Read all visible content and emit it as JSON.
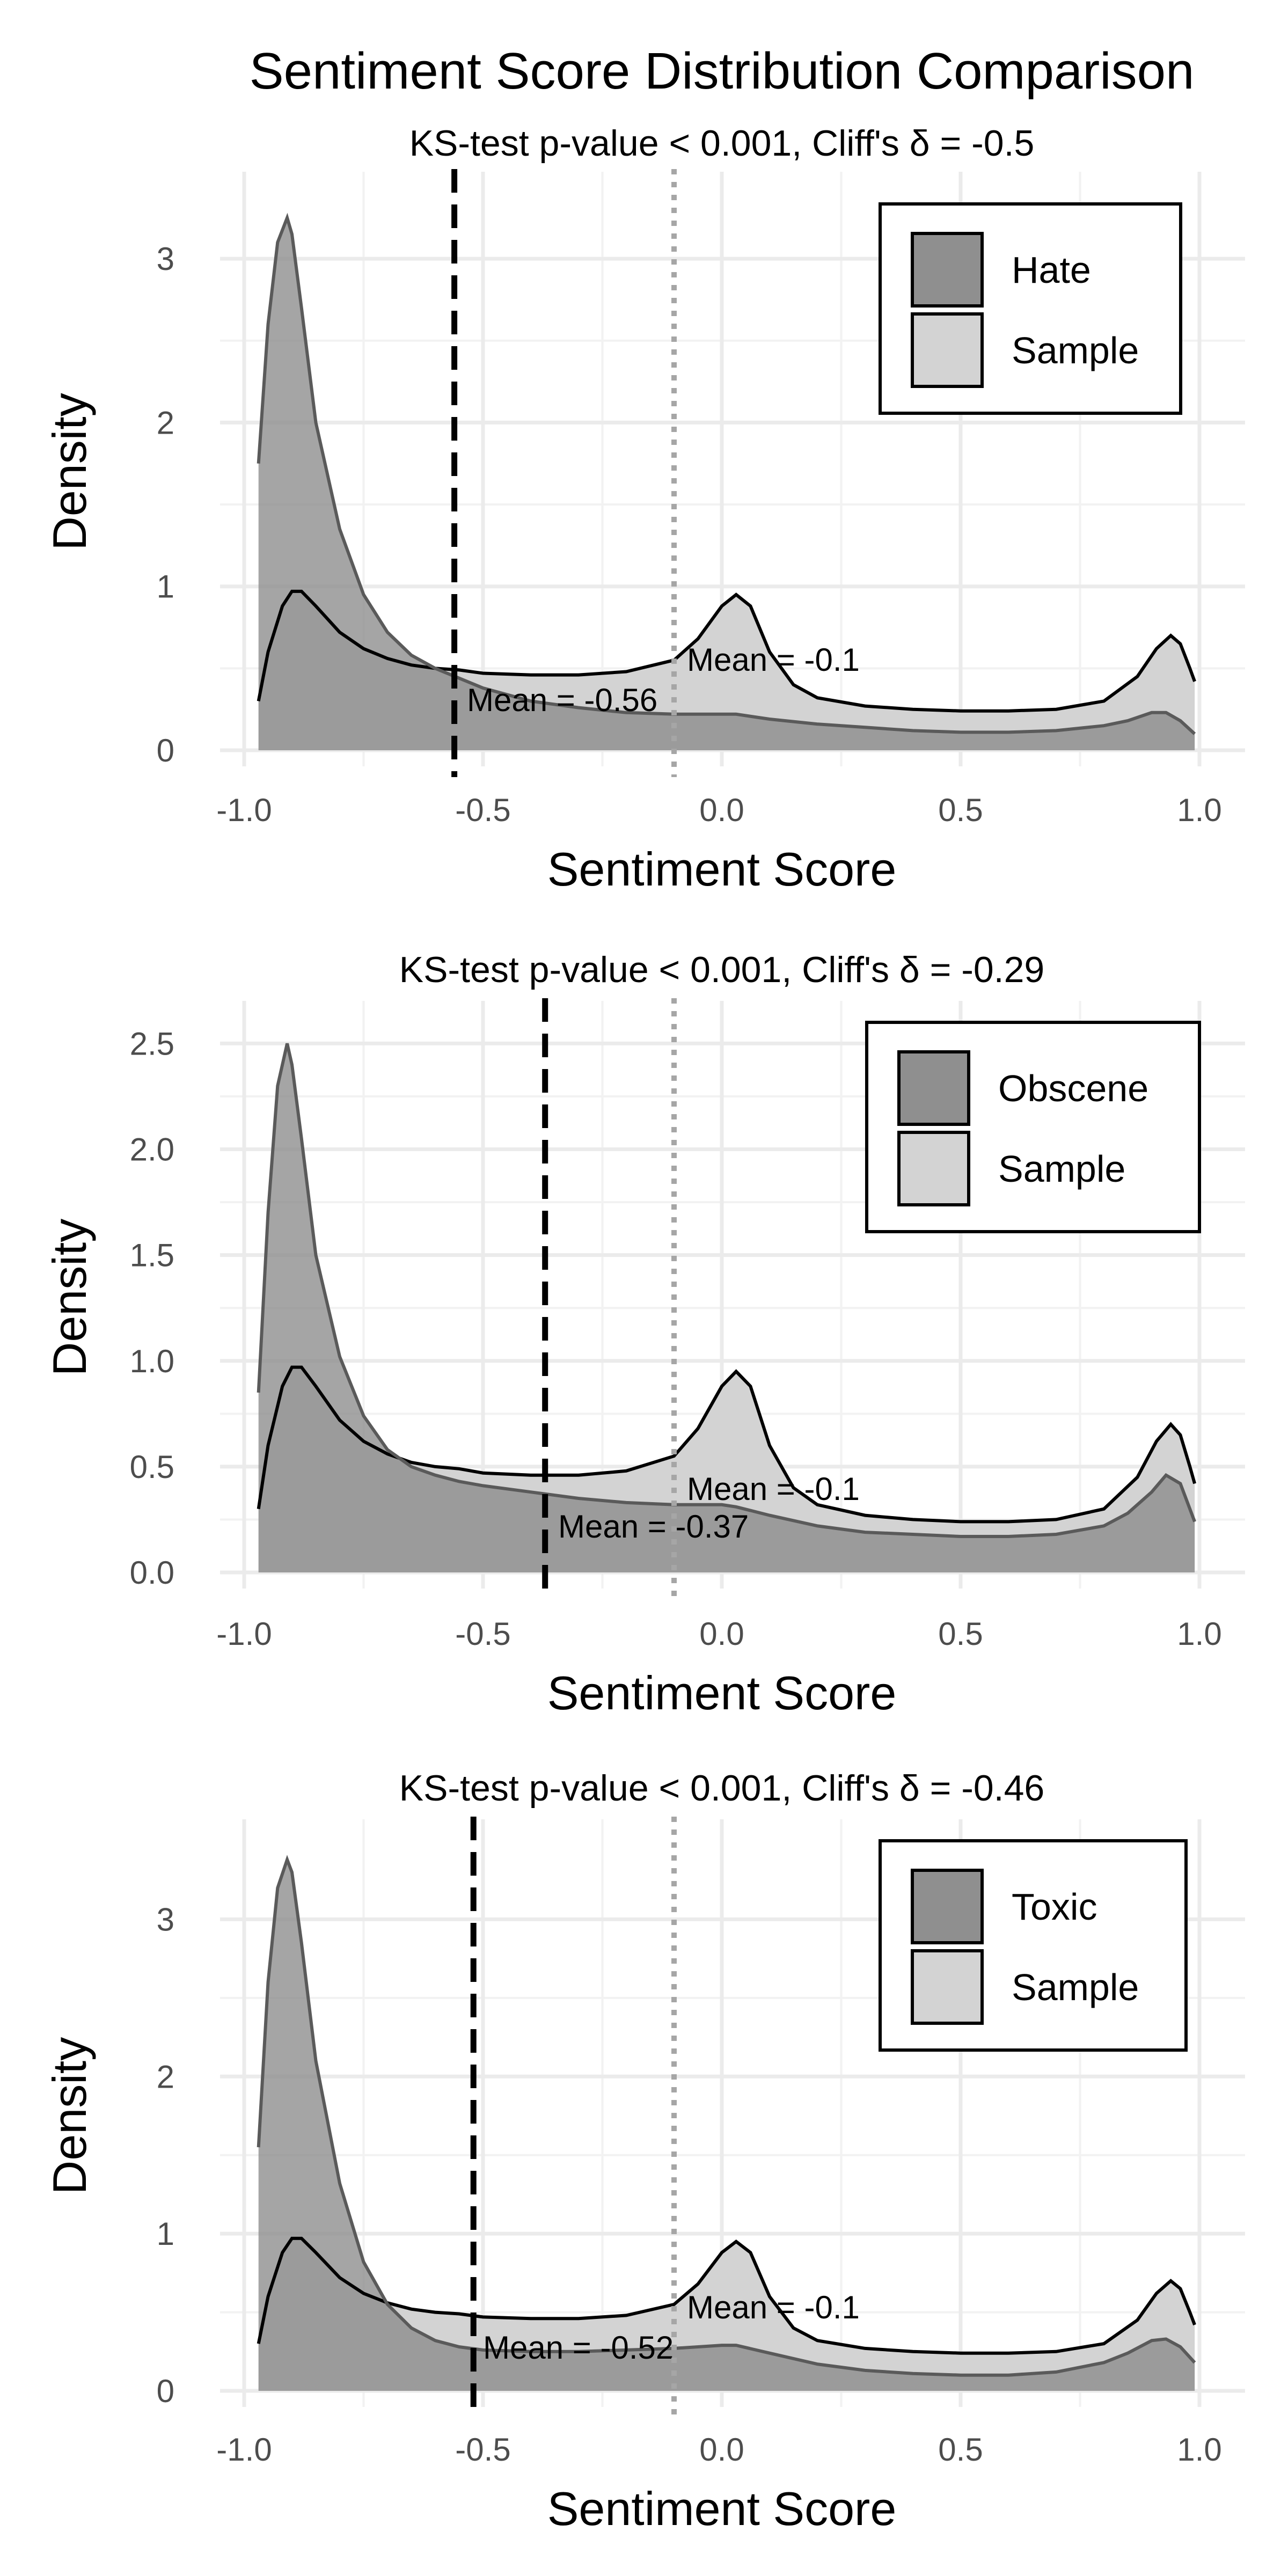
{
  "chart_data": {
    "title": "Sentiment Score Distribution Comparison",
    "panels": [
      {
        "type": "area",
        "subtitle": "KS-test p-value < 0.001, Cliff's δ = -0.5",
        "xlabel": "Sentiment Score",
        "ylabel": "Density",
        "xlim": [
          -1.0,
          1.0
        ],
        "ylim": [
          0,
          3.4
        ],
        "x_ticks": [
          -1.0,
          -0.5,
          0.0,
          0.5,
          1.0
        ],
        "x_tick_labels": [
          "-1.0",
          "-0.5",
          "0.0",
          "0.5",
          "1.0"
        ],
        "y_ticks": [
          0,
          1,
          2,
          3
        ],
        "y_tick_labels": [
          "0",
          "1",
          "2",
          "3"
        ],
        "legend": {
          "position": "top-right",
          "entries": [
            "Hate",
            "Sample"
          ]
        },
        "series": [
          {
            "name": "Hate",
            "color": "#8c8c8c",
            "x": [
              -0.97,
              -0.95,
              -0.93,
              -0.91,
              -0.9,
              -0.88,
              -0.85,
              -0.8,
              -0.75,
              -0.7,
              -0.65,
              -0.6,
              -0.55,
              -0.5,
              -0.4,
              -0.3,
              -0.2,
              -0.1,
              0.0,
              0.03,
              0.1,
              0.2,
              0.3,
              0.4,
              0.5,
              0.6,
              0.7,
              0.8,
              0.85,
              0.9,
              0.93,
              0.96,
              0.99
            ],
            "y": [
              1.75,
              2.6,
              3.1,
              3.25,
              3.15,
              2.7,
              2.0,
              1.35,
              0.95,
              0.72,
              0.58,
              0.5,
              0.44,
              0.38,
              0.3,
              0.26,
              0.23,
              0.22,
              0.22,
              0.22,
              0.19,
              0.16,
              0.14,
              0.12,
              0.11,
              0.11,
              0.12,
              0.15,
              0.18,
              0.23,
              0.23,
              0.18,
              0.1
            ]
          },
          {
            "name": "Sample",
            "color": "#d3d3d3",
            "x": [
              -0.97,
              -0.95,
              -0.92,
              -0.9,
              -0.88,
              -0.85,
              -0.8,
              -0.75,
              -0.7,
              -0.65,
              -0.6,
              -0.55,
              -0.5,
              -0.4,
              -0.3,
              -0.2,
              -0.1,
              -0.05,
              0.0,
              0.03,
              0.06,
              0.1,
              0.15,
              0.2,
              0.3,
              0.4,
              0.5,
              0.6,
              0.7,
              0.8,
              0.87,
              0.91,
              0.94,
              0.96,
              0.98,
              0.99
            ],
            "y": [
              0.3,
              0.6,
              0.88,
              0.97,
              0.97,
              0.88,
              0.72,
              0.62,
              0.56,
              0.52,
              0.5,
              0.49,
              0.47,
              0.46,
              0.46,
              0.48,
              0.55,
              0.68,
              0.88,
              0.95,
              0.88,
              0.6,
              0.4,
              0.32,
              0.27,
              0.25,
              0.24,
              0.24,
              0.25,
              0.3,
              0.45,
              0.62,
              0.7,
              0.65,
              0.5,
              0.42
            ]
          }
        ],
        "reference_lines": [
          {
            "label": "Mean = -0.56",
            "x": -0.56,
            "style": "dashed",
            "color": "#000000"
          },
          {
            "label": "Mean = -0.1",
            "x": -0.1,
            "style": "dotted",
            "color": "#a6a6a6"
          }
        ]
      },
      {
        "type": "area",
        "subtitle": "KS-test p-value < 0.001, Cliff's δ = -0.29",
        "xlabel": "Sentiment Score",
        "ylabel": "Density",
        "xlim": [
          -1.0,
          1.0
        ],
        "ylim": [
          0,
          2.6
        ],
        "x_ticks": [
          -1.0,
          -0.5,
          0.0,
          0.5,
          1.0
        ],
        "x_tick_labels": [
          "-1.0",
          "-0.5",
          "0.0",
          "0.5",
          "1.0"
        ],
        "y_ticks": [
          0,
          0.5,
          1.0,
          1.5,
          2.0,
          2.5
        ],
        "y_tick_labels": [
          "0.0",
          "0.5",
          "1.0",
          "1.5",
          "2.0",
          "2.5"
        ],
        "legend": {
          "position": "top-right",
          "entries": [
            "Obscene",
            "Sample"
          ]
        },
        "series": [
          {
            "name": "Obscene",
            "color": "#8c8c8c",
            "x": [
              -0.97,
              -0.95,
              -0.93,
              -0.91,
              -0.9,
              -0.88,
              -0.85,
              -0.8,
              -0.75,
              -0.7,
              -0.65,
              -0.6,
              -0.55,
              -0.5,
              -0.4,
              -0.3,
              -0.2,
              -0.1,
              0.0,
              0.03,
              0.1,
              0.2,
              0.3,
              0.4,
              0.5,
              0.6,
              0.7,
              0.8,
              0.85,
              0.9,
              0.93,
              0.96,
              0.99
            ],
            "y": [
              0.85,
              1.7,
              2.3,
              2.5,
              2.4,
              2.05,
              1.5,
              1.02,
              0.74,
              0.58,
              0.5,
              0.46,
              0.43,
              0.41,
              0.38,
              0.35,
              0.33,
              0.32,
              0.32,
              0.31,
              0.27,
              0.22,
              0.19,
              0.18,
              0.17,
              0.17,
              0.18,
              0.22,
              0.28,
              0.38,
              0.46,
              0.42,
              0.24
            ]
          },
          {
            "name": "Sample",
            "color": "#d3d3d3",
            "x": [
              -0.97,
              -0.95,
              -0.92,
              -0.9,
              -0.88,
              -0.85,
              -0.8,
              -0.75,
              -0.7,
              -0.65,
              -0.6,
              -0.55,
              -0.5,
              -0.4,
              -0.3,
              -0.2,
              -0.1,
              -0.05,
              0.0,
              0.03,
              0.06,
              0.1,
              0.15,
              0.2,
              0.3,
              0.4,
              0.5,
              0.6,
              0.7,
              0.8,
              0.87,
              0.91,
              0.94,
              0.96,
              0.98,
              0.99
            ],
            "y": [
              0.3,
              0.6,
              0.88,
              0.97,
              0.97,
              0.88,
              0.72,
              0.62,
              0.56,
              0.52,
              0.5,
              0.49,
              0.47,
              0.46,
              0.46,
              0.48,
              0.55,
              0.68,
              0.88,
              0.95,
              0.88,
              0.6,
              0.4,
              0.32,
              0.27,
              0.25,
              0.24,
              0.24,
              0.25,
              0.3,
              0.45,
              0.62,
              0.7,
              0.65,
              0.5,
              0.42
            ]
          }
        ],
        "reference_lines": [
          {
            "label": "Mean = -0.37",
            "x": -0.37,
            "style": "dashed",
            "color": "#000000"
          },
          {
            "label": "Mean = -0.1",
            "x": -0.1,
            "style": "dotted",
            "color": "#a6a6a6"
          }
        ]
      },
      {
        "type": "area",
        "subtitle": "KS-test p-value < 0.001, Cliff's δ = -0.46",
        "xlabel": "Sentiment Score",
        "ylabel": "Density",
        "xlim": [
          -1.0,
          1.0
        ],
        "ylim": [
          0,
          3.5
        ],
        "x_ticks": [
          -1.0,
          -0.5,
          0.0,
          0.5,
          1.0
        ],
        "x_tick_labels": [
          "-1.0",
          "-0.5",
          "0.0",
          "0.5",
          "1.0"
        ],
        "y_ticks": [
          0,
          1,
          2,
          3
        ],
        "y_tick_labels": [
          "0",
          "1",
          "2",
          "3"
        ],
        "legend": {
          "position": "top-right",
          "entries": [
            "Toxic",
            "Sample"
          ]
        },
        "series": [
          {
            "name": "Toxic",
            "color": "#8c8c8c",
            "x": [
              -0.97,
              -0.95,
              -0.93,
              -0.91,
              -0.9,
              -0.88,
              -0.85,
              -0.8,
              -0.75,
              -0.7,
              -0.65,
              -0.6,
              -0.55,
              -0.5,
              -0.4,
              -0.3,
              -0.2,
              -0.1,
              0.0,
              0.03,
              0.1,
              0.2,
              0.3,
              0.4,
              0.5,
              0.6,
              0.7,
              0.8,
              0.85,
              0.9,
              0.93,
              0.96,
              0.99
            ],
            "y": [
              1.55,
              2.6,
              3.2,
              3.38,
              3.3,
              2.85,
              2.1,
              1.32,
              0.82,
              0.55,
              0.4,
              0.32,
              0.28,
              0.26,
              0.25,
              0.25,
              0.26,
              0.27,
              0.29,
              0.29,
              0.24,
              0.17,
              0.13,
              0.11,
              0.1,
              0.1,
              0.12,
              0.18,
              0.24,
              0.32,
              0.33,
              0.28,
              0.18
            ]
          },
          {
            "name": "Sample",
            "color": "#d3d3d3",
            "x": [
              -0.97,
              -0.95,
              -0.92,
              -0.9,
              -0.88,
              -0.85,
              -0.8,
              -0.75,
              -0.7,
              -0.65,
              -0.6,
              -0.55,
              -0.5,
              -0.4,
              -0.3,
              -0.2,
              -0.1,
              -0.05,
              0.0,
              0.03,
              0.06,
              0.1,
              0.15,
              0.2,
              0.3,
              0.4,
              0.5,
              0.6,
              0.7,
              0.8,
              0.87,
              0.91,
              0.94,
              0.96,
              0.98,
              0.99
            ],
            "y": [
              0.3,
              0.6,
              0.88,
              0.97,
              0.97,
              0.88,
              0.72,
              0.62,
              0.56,
              0.52,
              0.5,
              0.49,
              0.47,
              0.46,
              0.46,
              0.48,
              0.55,
              0.68,
              0.88,
              0.95,
              0.88,
              0.6,
              0.4,
              0.32,
              0.27,
              0.25,
              0.24,
              0.24,
              0.25,
              0.3,
              0.45,
              0.62,
              0.7,
              0.65,
              0.5,
              0.42
            ]
          }
        ],
        "reference_lines": [
          {
            "label": "Mean = -0.52",
            "x": -0.52,
            "style": "dashed",
            "color": "#000000"
          },
          {
            "label": "Mean = -0.1",
            "x": -0.1,
            "style": "dotted",
            "color": "#a6a6a6"
          }
        ]
      }
    ]
  }
}
